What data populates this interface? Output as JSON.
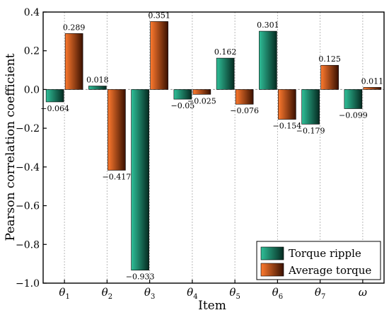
{
  "chart_data": {
    "type": "bar",
    "xlabel": "Item",
    "ylabel": "Pearson correlation coefficient",
    "ylim": [
      -1.0,
      0.4
    ],
    "yticks": [
      0.4,
      0.2,
      0.0,
      -0.2,
      -0.4,
      -0.6,
      -0.8,
      -1.0
    ],
    "ytick_labels": [
      "0.4",
      "0.2",
      "0.0",
      "−0.2",
      "−0.4",
      "−0.6",
      "−0.8",
      "−1.0"
    ],
    "grid": "vertical dashed",
    "legend_position": "bottom-right",
    "categories": [
      {
        "base": "θ",
        "sub": "1"
      },
      {
        "base": "θ",
        "sub": "2"
      },
      {
        "base": "θ",
        "sub": "3"
      },
      {
        "base": "θ",
        "sub": "4"
      },
      {
        "base": "θ",
        "sub": "5"
      },
      {
        "base": "θ",
        "sub": "6"
      },
      {
        "base": "θ",
        "sub": "7"
      },
      {
        "base": "ω",
        "sub": ""
      }
    ],
    "series": [
      {
        "name": "Torque ripple",
        "color": "#1a9a7a",
        "values": [
          -0.064,
          0.018,
          -0.933,
          -0.05,
          0.162,
          0.301,
          -0.179,
          -0.099
        ],
        "labels": [
          "−0.064",
          "0.018",
          "−0.933",
          "−0.05",
          "0.162",
          "0.301",
          "−0.179",
          "−0.099"
        ]
      },
      {
        "name": "Average torque",
        "color": "#e8601c",
        "values": [
          0.289,
          -0.417,
          0.351,
          -0.025,
          -0.076,
          -0.154,
          0.125,
          0.011
        ],
        "labels": [
          "0.289",
          "−0.417",
          "0.351",
          "−0.025",
          "−0.076",
          "−0.154",
          "0.125",
          "0.011"
        ]
      }
    ]
  }
}
